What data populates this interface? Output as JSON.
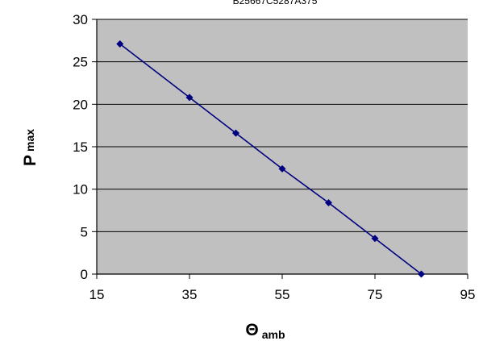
{
  "chart_data": {
    "type": "scatter",
    "title": "B25667C5287A375",
    "xlabel": {
      "main": "Θ",
      "sub": "amb"
    },
    "ylabel": {
      "main": "P",
      "sub": "max"
    },
    "xlim": [
      15,
      95
    ],
    "ylim": [
      0,
      30
    ],
    "xticks": [
      15,
      35,
      55,
      75,
      95
    ],
    "yticks": [
      0,
      5,
      10,
      15,
      20,
      25,
      30
    ],
    "grid": "horizontal",
    "legend": "none",
    "series": [
      {
        "x": [
          20,
          35,
          45,
          55,
          65,
          75,
          85
        ],
        "y": [
          27.1,
          20.8,
          16.6,
          12.4,
          8.4,
          4.2,
          0
        ]
      }
    ],
    "colors": {
      "plot_background": "#c0c0c0",
      "series": "#000080",
      "grid": "#000000",
      "page_background": "#ffffff"
    }
  }
}
